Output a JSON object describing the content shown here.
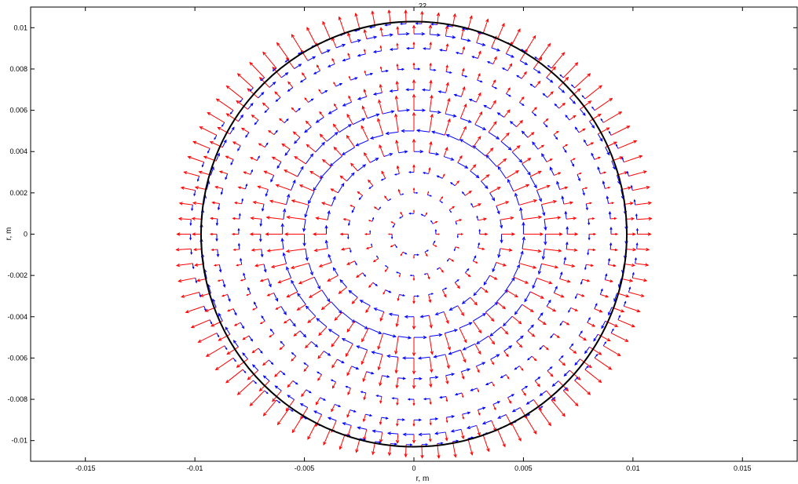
{
  "chart_data": {
    "type": "quiver",
    "title": "22",
    "xlabel": "r, m",
    "ylabel": "r, m",
    "xlim": [
      -0.0175,
      0.0175
    ],
    "ylim": [
      -0.011,
      0.011
    ],
    "xticks": [
      -0.015,
      -0.01,
      -0.005,
      0,
      0.005,
      0.01,
      0.015
    ],
    "xtick_labels": [
      "-0.015",
      "-0.01",
      "-0.005",
      "0",
      "0.005",
      "0.01",
      "0.015"
    ],
    "yticks": [
      -0.01,
      -0.008,
      -0.006,
      -0.004,
      -0.002,
      0,
      0.002,
      0.004,
      0.006,
      0.008,
      0.01
    ],
    "ytick_labels": [
      "-0.01",
      "-0.008",
      "-0.006",
      "-0.004",
      "-0.002",
      "0",
      "0.002",
      "0.004",
      "0.006",
      "0.008",
      "0.01"
    ],
    "grid": false,
    "boundary_circle": {
      "center": [
        0,
        0
      ],
      "radius": 0.01,
      "color": "#000000"
    },
    "rings": [
      {
        "radius": 0.001,
        "points": 12,
        "phase": 0.3
      },
      {
        "radius": 0.002,
        "points": 20,
        "phase": 0.6
      },
      {
        "radius": 0.003,
        "points": 28,
        "phase": 0.9
      },
      {
        "radius": 0.004,
        "points": 36,
        "phase": 1.2
      },
      {
        "radius": 0.005,
        "points": 44,
        "phase": 1.5
      },
      {
        "radius": 0.006,
        "points": 52,
        "phase": 1.8
      },
      {
        "radius": 0.007,
        "points": 60,
        "phase": 2.1
      },
      {
        "radius": 0.008,
        "points": 68,
        "phase": 2.4
      },
      {
        "radius": 0.009,
        "points": 76,
        "phase": 2.7
      },
      {
        "radius": 0.0097,
        "points": 84,
        "phase": 3.0
      },
      {
        "radius": 0.0102,
        "points": 90,
        "phase": 3.3
      }
    ],
    "series": [
      {
        "component": "radial",
        "color": "#ff0000",
        "magnitude_profile": [
          0.2,
          0.25,
          0.35,
          0.55,
          0.8,
          0.7,
          0.45,
          0.3,
          0.35,
          0.6,
          0.9
        ]
      },
      {
        "component": "tangential",
        "color": "#0000ff",
        "magnitude_profile": [
          0.25,
          0.2,
          0.3,
          0.6,
          0.85,
          0.75,
          0.5,
          0.35,
          0.4,
          0.55,
          0.3
        ]
      }
    ],
    "arrow_scale": 0.0011
  }
}
